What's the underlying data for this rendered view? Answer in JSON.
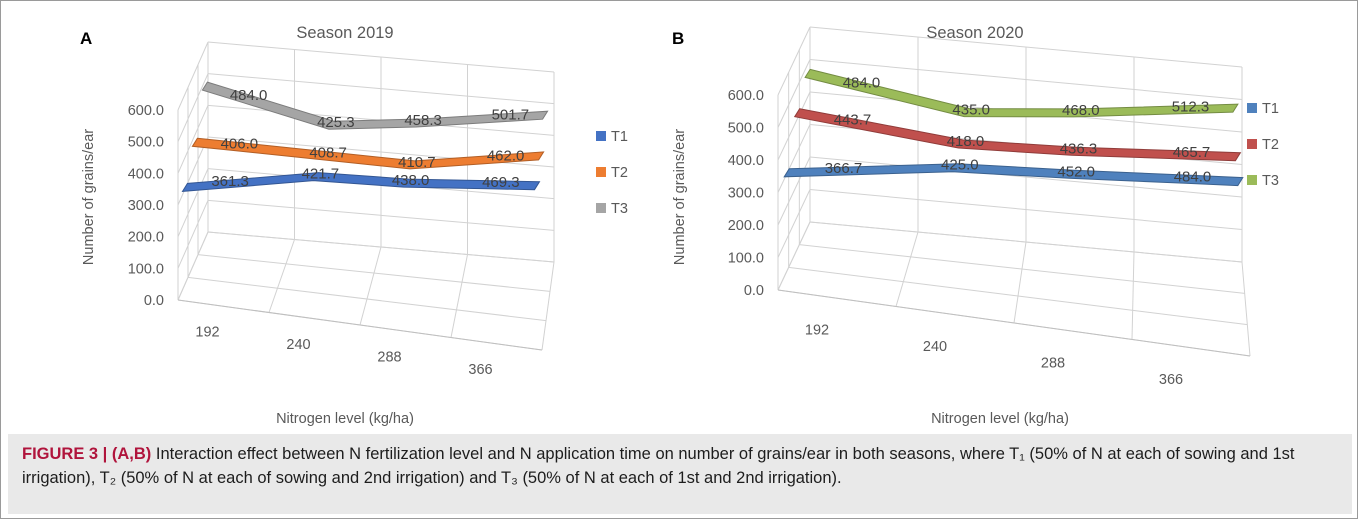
{
  "chart_data": [
    {
      "panel": "A",
      "type": "line",
      "title": "Season 2019",
      "xlabel": "Nitrogen level (kg/ha)",
      "ylabel": "Number of grains/ear",
      "categories": [
        "192",
        "240",
        "288",
        "366"
      ],
      "yticks": [
        "0.0",
        "100.0",
        "200.0",
        "300.0",
        "400.0",
        "500.0",
        "600.0"
      ],
      "ylim": [
        0,
        600
      ],
      "series": [
        {
          "name": "T1",
          "values": [
            361.3,
            421.7,
            438.0,
            469.3
          ],
          "labels": [
            "361.3",
            "421.7",
            "438.0",
            "469.3"
          ],
          "color": "#4472c4"
        },
        {
          "name": "T2",
          "values": [
            406.0,
            408.7,
            410.7,
            462.0
          ],
          "labels": [
            "406.0",
            "408.7",
            "410.7",
            "462.0"
          ],
          "color": "#ed7d31"
        },
        {
          "name": "T3",
          "values": [
            484.0,
            425.3,
            458.3,
            501.7
          ],
          "labels": [
            "484.0",
            "425.3",
            "458.3",
            "501.7"
          ],
          "color": "#a5a5a5"
        }
      ],
      "legend_position": "right"
    },
    {
      "panel": "B",
      "type": "line",
      "title": "Season 2020",
      "xlabel": "Nitrogen level (kg/ha)",
      "ylabel": "Number of grains/ear",
      "categories": [
        "192",
        "240",
        "288",
        "366"
      ],
      "yticks": [
        "0.0",
        "100.0",
        "200.0",
        "300.0",
        "400.0",
        "500.0",
        "600.0"
      ],
      "ylim": [
        0,
        600
      ],
      "series": [
        {
          "name": "T1",
          "values": [
            366.7,
            425.0,
            452.0,
            484.0
          ],
          "labels": [
            "366.7",
            "425.0",
            "452.0",
            "484.0"
          ],
          "color": "#4f81bd"
        },
        {
          "name": "T2",
          "values": [
            443.7,
            418.0,
            436.3,
            465.7
          ],
          "labels": [
            "443.7",
            "418.0",
            "436.3",
            "465.7"
          ],
          "color": "#c0504d"
        },
        {
          "name": "T3",
          "values": [
            484.0,
            435.0,
            468.0,
            512.3
          ],
          "labels": [
            "484.0",
            "435.0",
            "468.0",
            "512.3"
          ],
          "color": "#9bbb59"
        }
      ],
      "legend_position": "right"
    }
  ],
  "caption": {
    "label": "FIGURE 3 | (A,B)",
    "text": "Interaction effect between N fertilization level and N application time on number of grains/ear in both seasons, where T₁ (50% of N at each of sowing and 1st irrigation), T₂ (50% of N at each of sowing and 2nd irrigation) and T₃ (50% of N at each of 1st and 2nd irrigation)."
  }
}
